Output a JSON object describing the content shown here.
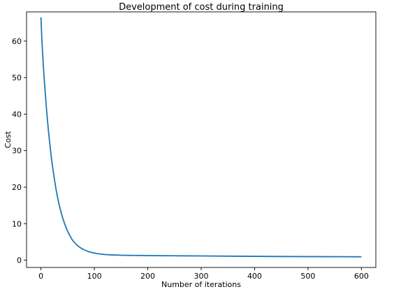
{
  "chart_data": {
    "type": "line",
    "title": "Development of cost during training",
    "xlabel": "Number of iterations",
    "ylabel": "Cost",
    "xlim": [
      -27,
      627
    ],
    "ylim": [
      -2,
      68
    ],
    "xticks": [
      0,
      100,
      200,
      300,
      400,
      500,
      600
    ],
    "yticks": [
      0,
      10,
      20,
      30,
      40,
      50,
      60
    ],
    "grid": false,
    "legend": "none",
    "line_color": "#1f77b4",
    "x": [
      0,
      2,
      5,
      10,
      15,
      20,
      25,
      30,
      35,
      40,
      45,
      50,
      55,
      60,
      70,
      80,
      90,
      100,
      110,
      120,
      130,
      150,
      175,
      200,
      250,
      300,
      350,
      400,
      450,
      500,
      550,
      600
    ],
    "y": [
      66.5,
      59.5,
      52.0,
      42.0,
      34.0,
      27.5,
      22.3,
      18.0,
      14.6,
      11.9,
      9.7,
      7.9,
      6.5,
      5.3,
      3.8,
      2.9,
      2.3,
      1.95,
      1.7,
      1.55,
      1.45,
      1.35,
      1.3,
      1.25,
      1.2,
      1.15,
      1.1,
      1.05,
      1.0,
      0.98,
      0.95,
      0.92
    ]
  }
}
